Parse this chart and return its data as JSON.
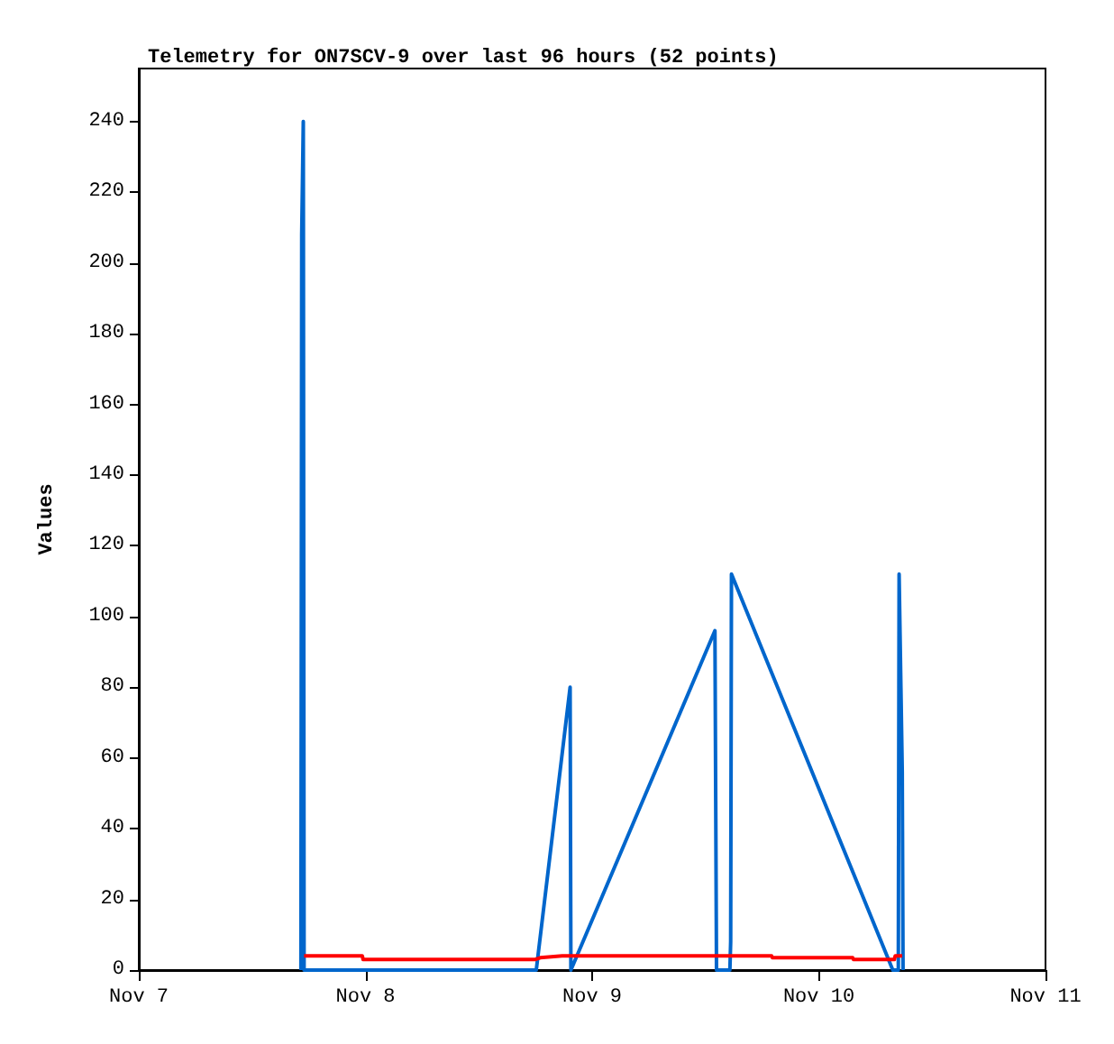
{
  "chart_data": {
    "type": "line",
    "title": "Telemetry for ON7SCV-9 over last 96 hours (52 points)",
    "ylabel": "Values",
    "xlim": [
      "--11-07",
      "--11-11"
    ],
    "xticks": [
      {
        "value": "--11-07",
        "label": "Nov 7"
      },
      {
        "value": "--11-08",
        "label": "Nov 8"
      },
      {
        "value": "--11-09",
        "label": "Nov 9"
      },
      {
        "value": "--11-10",
        "label": "Nov 10"
      },
      {
        "value": "--11-11",
        "label": "Nov 11"
      }
    ],
    "ylim": [
      0,
      255
    ],
    "yticks": [
      0,
      20,
      40,
      60,
      80,
      100,
      120,
      140,
      160,
      180,
      200,
      220,
      240
    ],
    "grid": false,
    "marker": "none",
    "line_style": "solid",
    "series": [
      {
        "color": "#0066cc",
        "x": [
          "--11-07T17:10",
          "--11-07T17:15",
          "--11-07T17:25",
          "--11-07T17:30",
          "--11-08T18:05",
          "--11-08T21:40",
          "--11-08T21:45",
          "--11-09T13:00",
          "--11-09T13:05",
          "--11-09T13:10",
          "--11-09T14:35",
          "--11-09T14:40",
          "--11-09T14:45",
          "--11-10T07:50",
          "--11-10T08:25",
          "--11-10T08:30",
          "--11-10T08:50",
          "--11-10T08:55"
        ],
        "values": [
          0,
          208,
          240,
          0,
          0,
          80,
          0,
          96,
          48,
          0,
          0,
          8,
          112,
          0,
          0,
          112,
          56,
          0
        ]
      },
      {
        "color": "#ff0000",
        "x": [
          "--11-07T17:30",
          "--11-07T23:40",
          "--11-07T23:45",
          "--11-08T18:00",
          "--11-08T18:30",
          "--11-08T20:50",
          "--11-09T19:00",
          "--11-09T19:05",
          "--11-10T03:35",
          "--11-10T03:40",
          "--11-10T08:00",
          "--11-10T08:05",
          "--11-10T08:50"
        ],
        "values": [
          4,
          4,
          3,
          3,
          3.5,
          4,
          4,
          3.5,
          3.5,
          3,
          3,
          4,
          4
        ]
      }
    ]
  }
}
